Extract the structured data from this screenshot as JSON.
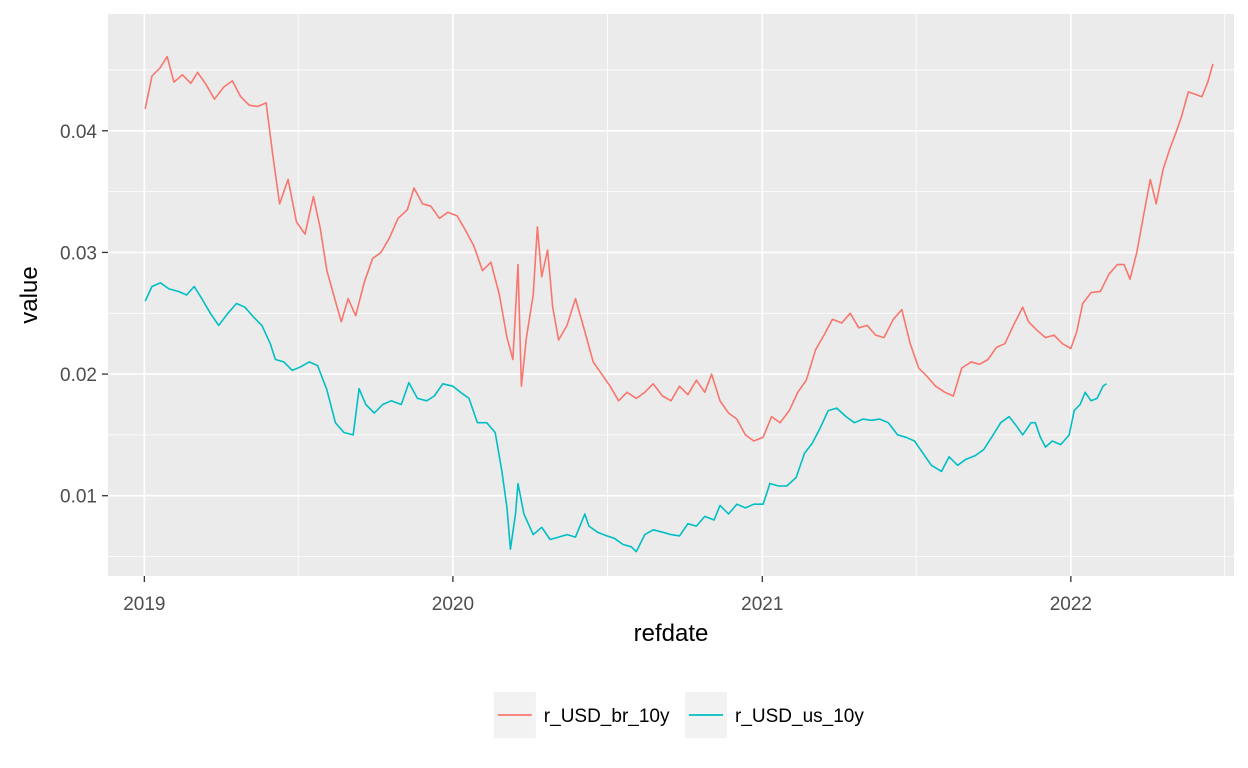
{
  "chart_data": {
    "type": "line",
    "title": "",
    "xlabel": "refdate",
    "ylabel": "value",
    "xlim": [
      "2018-11-19",
      "2022-07-13"
    ],
    "ylim": [
      0.0034,
      0.0496
    ],
    "x_ticks": [
      {
        "label": "2019",
        "date": "2019-01-01"
      },
      {
        "label": "2020",
        "date": "2020-01-01"
      },
      {
        "label": "2021",
        "date": "2021-01-01"
      },
      {
        "label": "2022",
        "date": "2022-01-01"
      }
    ],
    "y_ticks": [
      {
        "label": "0.01",
        "value": 0.01
      },
      {
        "label": "0.02",
        "value": 0.02
      },
      {
        "label": "0.03",
        "value": 0.03
      },
      {
        "label": "0.04",
        "value": 0.04
      }
    ],
    "grid": true,
    "legend_position": "bottom",
    "series": [
      {
        "name": "r_USD_br_10y",
        "color": "#F8766D",
        "points": [
          [
            "2019-01-02",
            0.0418
          ],
          [
            "2019-01-10",
            0.0445
          ],
          [
            "2019-01-20",
            0.0452
          ],
          [
            "2019-01-28",
            0.0461
          ],
          [
            "2019-02-05",
            0.044
          ],
          [
            "2019-02-15",
            0.0446
          ],
          [
            "2019-02-25",
            0.0439
          ],
          [
            "2019-03-05",
            0.0448
          ],
          [
            "2019-03-15",
            0.0438
          ],
          [
            "2019-03-25",
            0.0426
          ],
          [
            "2019-04-05",
            0.0436
          ],
          [
            "2019-04-15",
            0.0441
          ],
          [
            "2019-04-25",
            0.0428
          ],
          [
            "2019-05-05",
            0.0421
          ],
          [
            "2019-05-15",
            0.042
          ],
          [
            "2019-05-25",
            0.0423
          ],
          [
            "2019-06-02",
            0.038
          ],
          [
            "2019-06-10",
            0.034
          ],
          [
            "2019-06-20",
            0.036
          ],
          [
            "2019-06-30",
            0.0325
          ],
          [
            "2019-07-10",
            0.0315
          ],
          [
            "2019-07-20",
            0.0346
          ],
          [
            "2019-07-28",
            0.032
          ],
          [
            "2019-08-05",
            0.0285
          ],
          [
            "2019-08-15",
            0.026
          ],
          [
            "2019-08-22",
            0.0243
          ],
          [
            "2019-08-30",
            0.0262
          ],
          [
            "2019-09-08",
            0.0248
          ],
          [
            "2019-09-18",
            0.0275
          ],
          [
            "2019-09-28",
            0.0295
          ],
          [
            "2019-10-08",
            0.03
          ],
          [
            "2019-10-18",
            0.0312
          ],
          [
            "2019-10-28",
            0.0328
          ],
          [
            "2019-11-08",
            0.0335
          ],
          [
            "2019-11-16",
            0.0353
          ],
          [
            "2019-11-26",
            0.034
          ],
          [
            "2019-12-06",
            0.0338
          ],
          [
            "2019-12-16",
            0.0328
          ],
          [
            "2019-12-26",
            0.0333
          ],
          [
            "2020-01-06",
            0.033
          ],
          [
            "2020-01-16",
            0.0318
          ],
          [
            "2020-01-26",
            0.0305
          ],
          [
            "2020-02-05",
            0.0285
          ],
          [
            "2020-02-15",
            0.0292
          ],
          [
            "2020-02-25",
            0.0265
          ],
          [
            "2020-03-05",
            0.023
          ],
          [
            "2020-03-12",
            0.0212
          ],
          [
            "2020-03-18",
            0.029
          ],
          [
            "2020-03-22",
            0.019
          ],
          [
            "2020-03-28",
            0.023
          ],
          [
            "2020-04-05",
            0.0265
          ],
          [
            "2020-04-10",
            0.0321
          ],
          [
            "2020-04-15",
            0.028
          ],
          [
            "2020-04-22",
            0.0302
          ],
          [
            "2020-04-28",
            0.0255
          ],
          [
            "2020-05-05",
            0.0228
          ],
          [
            "2020-05-15",
            0.024
          ],
          [
            "2020-05-25",
            0.0262
          ],
          [
            "2020-06-05",
            0.0235
          ],
          [
            "2020-06-15",
            0.021
          ],
          [
            "2020-06-25",
            0.02
          ],
          [
            "2020-07-05",
            0.019
          ],
          [
            "2020-07-15",
            0.0178
          ],
          [
            "2020-07-25",
            0.0185
          ],
          [
            "2020-08-05",
            0.018
          ],
          [
            "2020-08-15",
            0.0185
          ],
          [
            "2020-08-25",
            0.0192
          ],
          [
            "2020-09-05",
            0.0182
          ],
          [
            "2020-09-15",
            0.0178
          ],
          [
            "2020-09-25",
            0.019
          ],
          [
            "2020-10-05",
            0.0183
          ],
          [
            "2020-10-15",
            0.0195
          ],
          [
            "2020-10-25",
            0.0185
          ],
          [
            "2020-11-02",
            0.02
          ],
          [
            "2020-11-12",
            0.0178
          ],
          [
            "2020-11-22",
            0.0168
          ],
          [
            "2020-12-02",
            0.0163
          ],
          [
            "2020-12-12",
            0.015
          ],
          [
            "2020-12-22",
            0.0145
          ],
          [
            "2021-01-02",
            0.0148
          ],
          [
            "2021-01-12",
            0.0165
          ],
          [
            "2021-01-22",
            0.016
          ],
          [
            "2021-02-02",
            0.017
          ],
          [
            "2021-02-12",
            0.0185
          ],
          [
            "2021-02-22",
            0.0195
          ],
          [
            "2021-03-05",
            0.022
          ],
          [
            "2021-03-15",
            0.0232
          ],
          [
            "2021-03-25",
            0.0245
          ],
          [
            "2021-04-05",
            0.0242
          ],
          [
            "2021-04-15",
            0.025
          ],
          [
            "2021-04-25",
            0.0238
          ],
          [
            "2021-05-05",
            0.024
          ],
          [
            "2021-05-15",
            0.0232
          ],
          [
            "2021-05-25",
            0.023
          ],
          [
            "2021-06-05",
            0.0245
          ],
          [
            "2021-06-15",
            0.0253
          ],
          [
            "2021-06-25",
            0.0225
          ],
          [
            "2021-07-05",
            0.0205
          ],
          [
            "2021-07-15",
            0.0198
          ],
          [
            "2021-07-25",
            0.019
          ],
          [
            "2021-08-05",
            0.0185
          ],
          [
            "2021-08-15",
            0.0182
          ],
          [
            "2021-08-25",
            0.0205
          ],
          [
            "2021-09-05",
            0.021
          ],
          [
            "2021-09-15",
            0.0208
          ],
          [
            "2021-09-25",
            0.0212
          ],
          [
            "2021-10-05",
            0.0222
          ],
          [
            "2021-10-15",
            0.0225
          ],
          [
            "2021-10-25",
            0.024
          ],
          [
            "2021-11-05",
            0.0255
          ],
          [
            "2021-11-12",
            0.0243
          ],
          [
            "2021-11-22",
            0.0236
          ],
          [
            "2021-12-02",
            0.023
          ],
          [
            "2021-12-12",
            0.0232
          ],
          [
            "2021-12-22",
            0.0225
          ],
          [
            "2022-01-01",
            0.0221
          ],
          [
            "2022-01-08",
            0.0235
          ],
          [
            "2022-01-15",
            0.0258
          ],
          [
            "2022-01-25",
            0.0267
          ],
          [
            "2022-02-05",
            0.0268
          ],
          [
            "2022-02-15",
            0.0282
          ],
          [
            "2022-02-25",
            0.029
          ],
          [
            "2022-03-05",
            0.029
          ],
          [
            "2022-03-12",
            0.0278
          ],
          [
            "2022-03-20",
            0.03
          ],
          [
            "2022-03-28",
            0.033
          ],
          [
            "2022-04-05",
            0.036
          ],
          [
            "2022-04-12",
            0.034
          ],
          [
            "2022-04-20",
            0.0368
          ],
          [
            "2022-04-28",
            0.0385
          ],
          [
            "2022-05-05",
            0.0398
          ],
          [
            "2022-05-12",
            0.0412
          ],
          [
            "2022-05-20",
            0.0432
          ],
          [
            "2022-05-28",
            0.043
          ],
          [
            "2022-06-05",
            0.0428
          ],
          [
            "2022-06-12",
            0.044
          ],
          [
            "2022-06-18",
            0.0455
          ]
        ]
      },
      {
        "name": "r_USD_us_10y",
        "color": "#00BFC4",
        "points": [
          [
            "2019-01-02",
            0.026
          ],
          [
            "2019-01-10",
            0.0272
          ],
          [
            "2019-01-20",
            0.0275
          ],
          [
            "2019-01-30",
            0.027
          ],
          [
            "2019-02-10",
            0.0268
          ],
          [
            "2019-02-20",
            0.0265
          ],
          [
            "2019-03-01",
            0.0272
          ],
          [
            "2019-03-10",
            0.0262
          ],
          [
            "2019-03-20",
            0.025
          ],
          [
            "2019-03-30",
            0.024
          ],
          [
            "2019-04-10",
            0.025
          ],
          [
            "2019-04-20",
            0.0258
          ],
          [
            "2019-04-30",
            0.0255
          ],
          [
            "2019-05-10",
            0.0247
          ],
          [
            "2019-05-20",
            0.024
          ],
          [
            "2019-05-30",
            0.0225
          ],
          [
            "2019-06-05",
            0.0212
          ],
          [
            "2019-06-15",
            0.021
          ],
          [
            "2019-06-25",
            0.0203
          ],
          [
            "2019-07-05",
            0.0206
          ],
          [
            "2019-07-15",
            0.021
          ],
          [
            "2019-07-25",
            0.0207
          ],
          [
            "2019-08-05",
            0.0187
          ],
          [
            "2019-08-15",
            0.016
          ],
          [
            "2019-08-25",
            0.0152
          ],
          [
            "2019-09-05",
            0.015
          ],
          [
            "2019-09-12",
            0.0188
          ],
          [
            "2019-09-20",
            0.0175
          ],
          [
            "2019-09-30",
            0.0168
          ],
          [
            "2019-10-10",
            0.0175
          ],
          [
            "2019-10-20",
            0.0178
          ],
          [
            "2019-11-01",
            0.0175
          ],
          [
            "2019-11-10",
            0.0193
          ],
          [
            "2019-11-20",
            0.018
          ],
          [
            "2019-12-01",
            0.0178
          ],
          [
            "2019-12-10",
            0.0182
          ],
          [
            "2019-12-20",
            0.0192
          ],
          [
            "2020-01-01",
            0.019
          ],
          [
            "2020-01-10",
            0.0185
          ],
          [
            "2020-01-20",
            0.018
          ],
          [
            "2020-01-30",
            0.016
          ],
          [
            "2020-02-10",
            0.016
          ],
          [
            "2020-02-20",
            0.0152
          ],
          [
            "2020-02-28",
            0.012
          ],
          [
            "2020-03-05",
            0.009
          ],
          [
            "2020-03-09",
            0.0056
          ],
          [
            "2020-03-15",
            0.0085
          ],
          [
            "2020-03-18",
            0.011
          ],
          [
            "2020-03-25",
            0.0085
          ],
          [
            "2020-04-05",
            0.0068
          ],
          [
            "2020-04-15",
            0.0074
          ],
          [
            "2020-04-25",
            0.0064
          ],
          [
            "2020-05-05",
            0.0066
          ],
          [
            "2020-05-15",
            0.0068
          ],
          [
            "2020-05-25",
            0.0066
          ],
          [
            "2020-06-05",
            0.0085
          ],
          [
            "2020-06-10",
            0.0075
          ],
          [
            "2020-06-20",
            0.007
          ],
          [
            "2020-07-01",
            0.0067
          ],
          [
            "2020-07-10",
            0.0065
          ],
          [
            "2020-07-20",
            0.006
          ],
          [
            "2020-07-30",
            0.0058
          ],
          [
            "2020-08-05",
            0.0054
          ],
          [
            "2020-08-15",
            0.0068
          ],
          [
            "2020-08-25",
            0.0072
          ],
          [
            "2020-09-05",
            0.007
          ],
          [
            "2020-09-15",
            0.0068
          ],
          [
            "2020-09-25",
            0.0067
          ],
          [
            "2020-10-05",
            0.0077
          ],
          [
            "2020-10-15",
            0.0075
          ],
          [
            "2020-10-25",
            0.0083
          ],
          [
            "2020-11-05",
            0.008
          ],
          [
            "2020-11-12",
            0.0092
          ],
          [
            "2020-11-22",
            0.0085
          ],
          [
            "2020-12-02",
            0.0093
          ],
          [
            "2020-12-12",
            0.009
          ],
          [
            "2020-12-22",
            0.0093
          ],
          [
            "2021-01-02",
            0.0093
          ],
          [
            "2021-01-10",
            0.011
          ],
          [
            "2021-01-20",
            0.0108
          ],
          [
            "2021-01-30",
            0.0108
          ],
          [
            "2021-02-10",
            0.0115
          ],
          [
            "2021-02-20",
            0.0135
          ],
          [
            "2021-03-01",
            0.0143
          ],
          [
            "2021-03-10",
            0.0155
          ],
          [
            "2021-03-20",
            0.017
          ],
          [
            "2021-03-30",
            0.0172
          ],
          [
            "2021-04-10",
            0.0165
          ],
          [
            "2021-04-20",
            0.016
          ],
          [
            "2021-04-30",
            0.0163
          ],
          [
            "2021-05-10",
            0.0162
          ],
          [
            "2021-05-20",
            0.0163
          ],
          [
            "2021-05-30",
            0.016
          ],
          [
            "2021-06-10",
            0.015
          ],
          [
            "2021-06-20",
            0.0148
          ],
          [
            "2021-06-30",
            0.0145
          ],
          [
            "2021-07-05",
            0.014
          ],
          [
            "2021-07-10",
            0.0135
          ],
          [
            "2021-07-20",
            0.0125
          ],
          [
            "2021-08-01",
            0.012
          ],
          [
            "2021-08-10",
            0.0132
          ],
          [
            "2021-08-20",
            0.0125
          ],
          [
            "2021-08-30",
            0.013
          ],
          [
            "2021-09-10",
            0.0133
          ],
          [
            "2021-09-20",
            0.0138
          ],
          [
            "2021-10-01",
            0.015
          ],
          [
            "2021-10-10",
            0.016
          ],
          [
            "2021-10-20",
            0.0165
          ],
          [
            "2021-10-28",
            0.0158
          ],
          [
            "2021-11-05",
            0.015
          ],
          [
            "2021-11-15",
            0.016
          ],
          [
            "2021-11-20",
            0.016
          ],
          [
            "2021-11-26",
            0.0148
          ],
          [
            "2021-12-02",
            0.014
          ],
          [
            "2021-12-10",
            0.0145
          ],
          [
            "2021-12-20",
            0.0142
          ],
          [
            "2021-12-30",
            0.015
          ],
          [
            "2022-01-05",
            0.017
          ],
          [
            "2022-01-12",
            0.0175
          ],
          [
            "2022-01-18",
            0.0185
          ],
          [
            "2022-01-25",
            0.0178
          ],
          [
            "2022-02-01",
            0.018
          ],
          [
            "2022-02-08",
            0.019
          ],
          [
            "2022-02-12",
            0.0192
          ]
        ]
      }
    ]
  }
}
